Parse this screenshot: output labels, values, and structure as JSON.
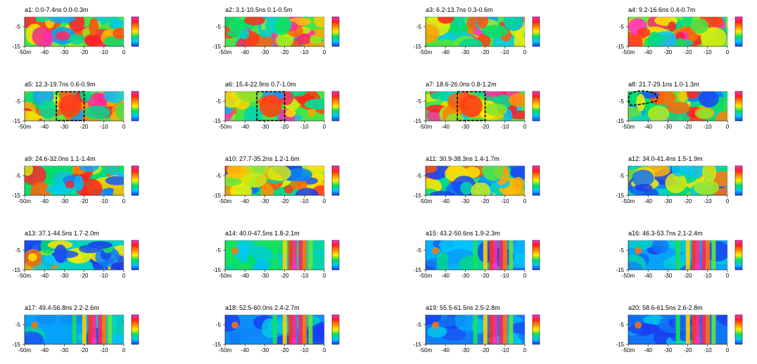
{
  "chart_data": {
    "type": "heatmap",
    "description_axes": {
      "x_ticks": [
        "-50m",
        "-40",
        "-30",
        "-20",
        "-10",
        "0"
      ],
      "x_tick_values": [
        -50,
        -40,
        -30,
        -20,
        -10,
        0
      ],
      "y_ticks": [
        "-5",
        "-15"
      ],
      "y_tick_values": [
        -5,
        -15
      ],
      "xlim": [
        -50,
        0
      ],
      "ylim": [
        -15,
        0
      ]
    },
    "colorbar": {
      "stops": [
        "#1a3cf0",
        "#00c8ff",
        "#00e060",
        "#ffee00",
        "#ff8800",
        "#ff1e1e",
        "#ff30c8"
      ]
    },
    "panels": [
      {
        "id": "a1",
        "label": "a1:  0.0-7.4ns  0.0-0.3m",
        "mode": "mixed",
        "rect": null,
        "blob": null,
        "level": 0.55
      },
      {
        "id": "a2",
        "label": "a2:  3.1-10.5ns  0.1-0.5m",
        "mode": "mixed",
        "rect": null,
        "blob": null,
        "level": 0.55
      },
      {
        "id": "a3",
        "label": "a3:  6.2-13.7ns  0.3-0.6m",
        "mode": "mixed",
        "rect": null,
        "blob": null,
        "level": 0.55
      },
      {
        "id": "a4",
        "label": "a4:  9.2-16.6ns  0.4-0.7m",
        "mode": "mixed",
        "rect": null,
        "blob": null,
        "level": 0.6
      },
      {
        "id": "a5",
        "label": "a5:  12.3-19.7ns  0.6-0.9m",
        "mode": "mixed",
        "rect": [
          -34,
          -20
        ],
        "blob": null,
        "level": 0.55
      },
      {
        "id": "a6",
        "label": "a6:  15.4-22.9ns  0.7-1.0m",
        "mode": "mixed",
        "rect": [
          -34,
          -20
        ],
        "blob": null,
        "level": 0.55
      },
      {
        "id": "a7",
        "label": "a7:  18.6-26.0ns  0.8-1.2m",
        "mode": "mixed",
        "rect": [
          -34,
          -20
        ],
        "blob": null,
        "level": 0.55
      },
      {
        "id": "a8",
        "label": "a8:  21.7-29.1ns  1.0-1.3m",
        "mode": "mixed",
        "rect": null,
        "blob": true,
        "level": 0.45
      },
      {
        "id": "a9",
        "label": "a9:  24.6-32.0ns  1.1-1.4m",
        "mode": "mixed",
        "rect": null,
        "blob": null,
        "level": 0.45
      },
      {
        "id": "a10",
        "label": "a10:  27.7-35.2ns  1.2-1.6m",
        "mode": "mixed",
        "rect": null,
        "blob": null,
        "level": 0.4
      },
      {
        "id": "a11",
        "label": "a11:  30.9-38.3ns  1.4-1.7m",
        "mode": "mixed",
        "rect": null,
        "blob": null,
        "level": 0.35
      },
      {
        "id": "a12",
        "label": "a12:  34.0-41.4ns  1.5-1.9m",
        "mode": "mixed",
        "rect": null,
        "blob": null,
        "level": 0.3
      },
      {
        "id": "a13",
        "label": "a13:  37.1-44.5ns  1.7-2.0m",
        "mode": "mixed",
        "rect": null,
        "blob": null,
        "level": 0.3
      },
      {
        "id": "a14",
        "label": "a14:  40.0-47.5ns  1.8-2.1m",
        "mode": "stripe",
        "rect": null,
        "blob": null,
        "level": 0.3
      },
      {
        "id": "a15",
        "label": "a15:  43.2-50.6ns  1.9-2.3m",
        "mode": "stripe",
        "rect": null,
        "blob": null,
        "level": 0.15
      },
      {
        "id": "a16",
        "label": "a16:  46.3-53.7ns  2.1-2.4m",
        "mode": "stripe",
        "rect": null,
        "blob": null,
        "level": 0.12
      },
      {
        "id": "a17",
        "label": "a17:  49.4-56.8ns  2.2-2.6m",
        "mode": "stripe",
        "rect": null,
        "blob": null,
        "level": 0.12
      },
      {
        "id": "a18",
        "label": "a18:  52.5-60.0ns  2.4-2.7m",
        "mode": "stripe",
        "rect": null,
        "blob": null,
        "level": 0.08
      },
      {
        "id": "a19",
        "label": "a19:  55.5-61.5ns  2.5-2.8m",
        "mode": "stripe",
        "rect": null,
        "blob": null,
        "level": 0.05
      },
      {
        "id": "a20",
        "label": "a20:  58.6-61.5ns  2.6-2.8m",
        "mode": "stripe",
        "rect": null,
        "blob": null,
        "level": 0.03
      }
    ]
  }
}
